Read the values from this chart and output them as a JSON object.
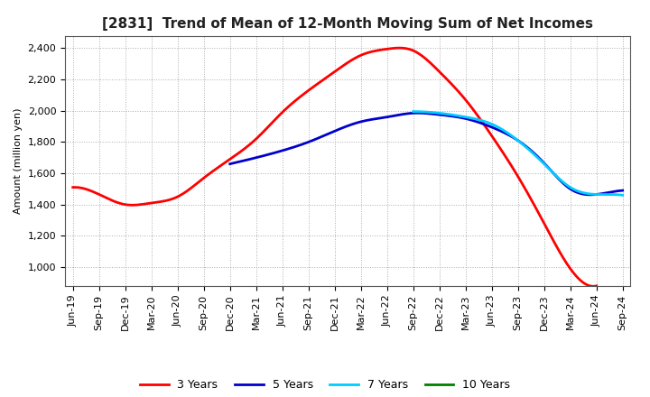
{
  "title": "[2831]  Trend of Mean of 12-Month Moving Sum of Net Incomes",
  "ylabel": "Amount (million yen)",
  "ylim": [
    880,
    2480
  ],
  "yticks": [
    1000,
    1200,
    1400,
    1600,
    1800,
    2000,
    2200,
    2400
  ],
  "x_labels": [
    "Jun-19",
    "Sep-19",
    "Dec-19",
    "Mar-20",
    "Jun-20",
    "Sep-20",
    "Dec-20",
    "Mar-21",
    "Jun-21",
    "Sep-21",
    "Dec-21",
    "Mar-22",
    "Jun-22",
    "Sep-22",
    "Dec-22",
    "Mar-23",
    "Jun-23",
    "Sep-23",
    "Dec-23",
    "Mar-24",
    "Jun-24",
    "Sep-24"
  ],
  "series": {
    "3 Years": {
      "color": "#ff0000",
      "values": [
        1510,
        1465,
        1400,
        1410,
        1450,
        1570,
        1690,
        1820,
        1990,
        2130,
        2250,
        2355,
        2395,
        2385,
        2250,
        2070,
        1840,
        1580,
        1280,
        990,
        880,
        null
      ]
    },
    "5 Years": {
      "color": "#0000cc",
      "values": [
        null,
        null,
        null,
        null,
        null,
        null,
        1660,
        1700,
        1745,
        1800,
        1870,
        1930,
        1960,
        1985,
        1975,
        1950,
        1895,
        1810,
        1665,
        1500,
        1465,
        1490
      ]
    },
    "7 Years": {
      "color": "#00ccff",
      "values": [
        null,
        null,
        null,
        null,
        null,
        null,
        null,
        null,
        null,
        null,
        null,
        null,
        null,
        1995,
        1985,
        1960,
        1915,
        1810,
        1660,
        1510,
        1465,
        1460
      ]
    },
    "10 Years": {
      "color": "#008000",
      "values": [
        null,
        null,
        null,
        null,
        null,
        null,
        null,
        null,
        null,
        null,
        null,
        null,
        null,
        null,
        null,
        null,
        null,
        null,
        null,
        null,
        null,
        null
      ]
    }
  },
  "legend_order": [
    "3 Years",
    "5 Years",
    "7 Years",
    "10 Years"
  ],
  "legend_colors": [
    "#ff0000",
    "#0000cc",
    "#00ccff",
    "#008000"
  ],
  "background_color": "#ffffff",
  "plot_background": "#ffffff",
  "grid_color": "#999999",
  "title_fontsize": 11,
  "axis_fontsize": 8,
  "legend_fontsize": 9
}
